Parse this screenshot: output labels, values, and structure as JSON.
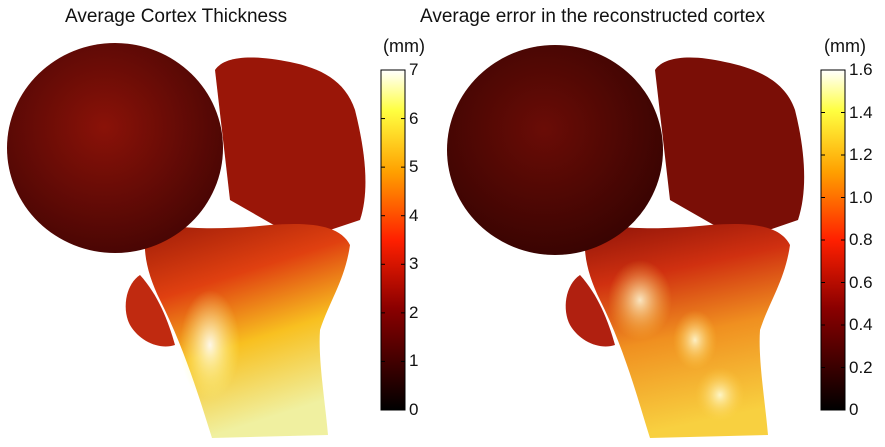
{
  "panels": [
    {
      "title": "Average Cortex Thickness",
      "unit": "(mm)",
      "ticks": [
        "7",
        "6",
        "5",
        "4",
        "3",
        "2",
        "1",
        "0"
      ],
      "tick_values": [
        7,
        6,
        5,
        4,
        3,
        2,
        1,
        0
      ],
      "range": [
        0,
        7
      ]
    },
    {
      "title": "Average error in the reconstructed cortex",
      "unit": "(mm)",
      "ticks": [
        "1.6",
        "1.4",
        "1.2",
        "1.0",
        "0.8",
        "0.6",
        "0.4",
        "0.2",
        "0"
      ],
      "tick_values": [
        1.6,
        1.4,
        1.2,
        1.0,
        0.8,
        0.6,
        0.4,
        0.2,
        0
      ],
      "range": [
        0,
        1.6
      ]
    }
  ],
  "colormap": [
    "#000000",
    "#8b0000",
    "#ff2000",
    "#ffa000",
    "#ffff40",
    "#ffffff"
  ]
}
